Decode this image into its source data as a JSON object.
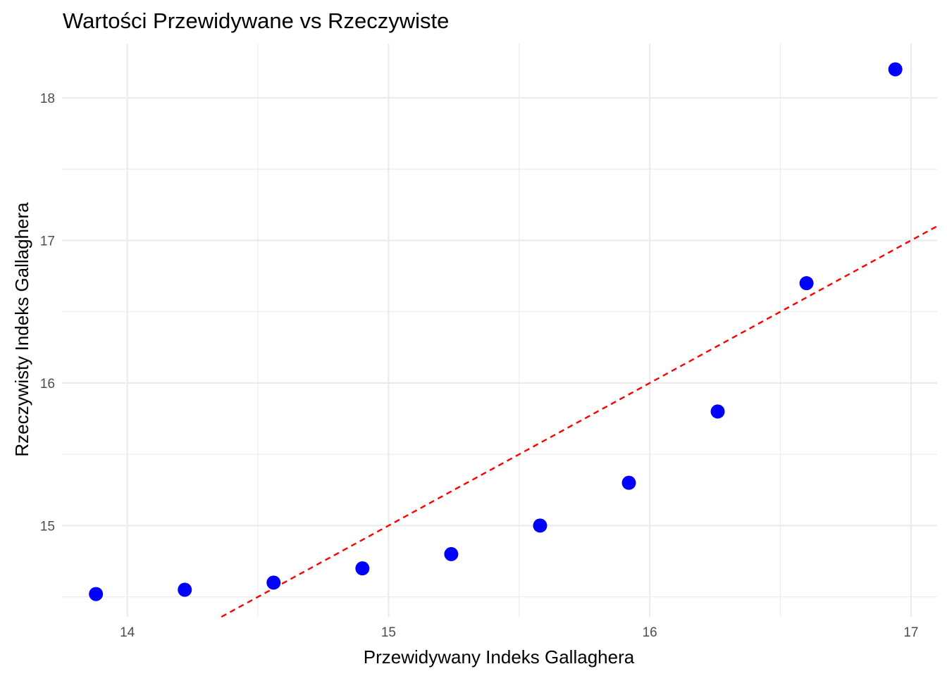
{
  "chart_data": {
    "type": "scatter",
    "title": "Wartości Przewidywane vs Rzeczywiste",
    "xlabel": "Przewidywany Indeks Gallaghera",
    "ylabel": "Rzeczywisty Indeks Gallaghera",
    "xlim": [
      13.75,
      17.1
    ],
    "ylim": [
      14.36,
      18.38
    ],
    "x_ticks": [
      14,
      15,
      16,
      17
    ],
    "x_tick_labels": [
      "14",
      "15",
      "16",
      "17"
    ],
    "x_minor_ticks": [
      14.5,
      15.5,
      16.5
    ],
    "y_ticks": [
      15,
      16,
      17,
      18
    ],
    "y_tick_labels": [
      "15",
      "16",
      "17",
      "18"
    ],
    "y_minor_ticks": [
      14.5,
      15.5,
      16.5,
      17.5
    ],
    "grid": true,
    "series": [
      {
        "color": "#0000ff",
        "x": [
          13.88,
          14.22,
          14.56,
          14.9,
          15.24,
          15.58,
          15.92,
          16.26,
          16.6,
          16.94
        ],
        "y": [
          14.52,
          14.55,
          14.6,
          14.7,
          14.8,
          15.0,
          15.3,
          15.8,
          16.7,
          18.2
        ]
      }
    ],
    "reference_line": {
      "style": "dashed",
      "color": "#ff0000",
      "slope": 1,
      "intercept": 0
    }
  }
}
